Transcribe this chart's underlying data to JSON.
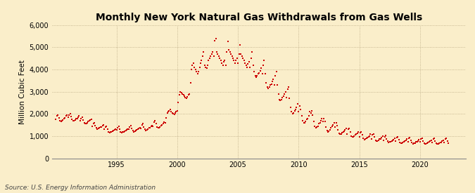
{
  "title": "Monthly New York Natural Gas Withdrawals from Gas Wells",
  "ylabel": "Million Cubic Feet",
  "source": "Source: U.S. Energy Information Administration",
  "background_color": "#faeeca",
  "marker_color": "#cc0000",
  "ylim": [
    0,
    6000
  ],
  "yticks": [
    0,
    1000,
    2000,
    3000,
    4000,
    5000,
    6000
  ],
  "ytick_labels": [
    "0",
    "1,000",
    "2,000",
    "3,000",
    "4,000",
    "5,000",
    "6,000"
  ],
  "xtick_years": [
    1995,
    2000,
    2005,
    2010,
    2015,
    2020
  ],
  "x_start_year": 1990,
  "x_end_year": 2023.75,
  "data": [
    1750,
    1900,
    1950,
    1820,
    1700,
    1650,
    1680,
    1720,
    1800,
    1820,
    1900,
    1950,
    1850,
    1950,
    2000,
    1880,
    1750,
    1700,
    1680,
    1720,
    1780,
    1800,
    1850,
    1900,
    1700,
    1800,
    1850,
    1720,
    1600,
    1550,
    1580,
    1600,
    1650,
    1680,
    1720,
    1750,
    1450,
    1550,
    1600,
    1480,
    1380,
    1320,
    1340,
    1360,
    1400,
    1420,
    1460,
    1500,
    1300,
    1400,
    1450,
    1320,
    1200,
    1150,
    1170,
    1190,
    1230,
    1250,
    1280,
    1320,
    1280,
    1380,
    1450,
    1310,
    1200,
    1150,
    1170,
    1190,
    1230,
    1250,
    1280,
    1320,
    1300,
    1400,
    1480,
    1350,
    1250,
    1200,
    1220,
    1240,
    1280,
    1300,
    1350,
    1380,
    1350,
    1500,
    1580,
    1420,
    1310,
    1260,
    1280,
    1300,
    1360,
    1380,
    1430,
    1480,
    1450,
    1620,
    1700,
    1560,
    1420,
    1370,
    1390,
    1420,
    1480,
    1500,
    1580,
    1640,
    1600,
    1820,
    2050,
    2100,
    2150,
    2200,
    2100,
    2050,
    2000,
    1980,
    2050,
    2100,
    2150,
    2500,
    2850,
    3000,
    2950,
    2900,
    2850,
    2800,
    2750,
    2700,
    2780,
    2850,
    2900,
    3400,
    4000,
    4200,
    4300,
    4100,
    4000,
    3900,
    3800,
    3900,
    4100,
    4300,
    4400,
    4600,
    4800,
    4200,
    4100,
    4050,
    4200,
    4400,
    4500,
    4600,
    4700,
    4800,
    4600,
    5300,
    5400,
    4800,
    4700,
    4600,
    4500,
    4400,
    4300,
    4200,
    4350,
    4400,
    4200,
    4800,
    5250,
    4900,
    4800,
    4700,
    4600,
    4500,
    4400,
    4300,
    4400,
    4500,
    4300,
    4700,
    5100,
    4700,
    4600,
    4500,
    4400,
    4300,
    4200,
    4100,
    4250,
    4350,
    4100,
    4500,
    4800,
    4200,
    3900,
    3700,
    3650,
    3700,
    3800,
    3850,
    3950,
    4050,
    3800,
    4200,
    4400,
    3800,
    3400,
    3200,
    3150,
    3200,
    3300,
    3350,
    3450,
    3550,
    3300,
    3700,
    3900,
    3300,
    2900,
    2650,
    2600,
    2650,
    2750,
    2800,
    2900,
    3000,
    2750,
    3100,
    3200,
    2700,
    2300,
    2100,
    2000,
    2050,
    2150,
    2200,
    2300,
    2450,
    2100,
    2350,
    2200,
    1900,
    1700,
    1600,
    1600,
    1650,
    1750,
    1800,
    1900,
    2100,
    2050,
    2150,
    1950,
    1650,
    1450,
    1380,
    1400,
    1450,
    1550,
    1600,
    1700,
    1800,
    1650,
    1800,
    1650,
    1400,
    1250,
    1200,
    1220,
    1270,
    1380,
    1430,
    1500,
    1600,
    1400,
    1600,
    1480,
    1280,
    1130,
    1080,
    1100,
    1150,
    1200,
    1220,
    1280,
    1350,
    1100,
    1300,
    1350,
    1180,
    1000,
    950,
    960,
    1000,
    1050,
    1080,
    1130,
    1200,
    980,
    1150,
    1200,
    1050,
    900,
    850,
    860,
    890,
    940,
    960,
    1010,
    1080,
    880,
    1050,
    1100,
    950,
    820,
    780,
    790,
    810,
    860,
    880,
    920,
    990,
    820,
    980,
    1020,
    880,
    760,
    720,
    730,
    750,
    790,
    810,
    850,
    910,
    770,
    920,
    960,
    830,
    720,
    680,
    690,
    710,
    750,
    770,
    810,
    860,
    750,
    900,
    940,
    810,
    700,
    660,
    670,
    690,
    730,
    750,
    790,
    840,
    730,
    880,
    910,
    790,
    680,
    645,
    655,
    675,
    715,
    735,
    775,
    820,
    710,
    860,
    890,
    770,
    670,
    635,
    645,
    665,
    700,
    720,
    760,
    800,
    710,
    860,
    890,
    770,
    670
  ]
}
